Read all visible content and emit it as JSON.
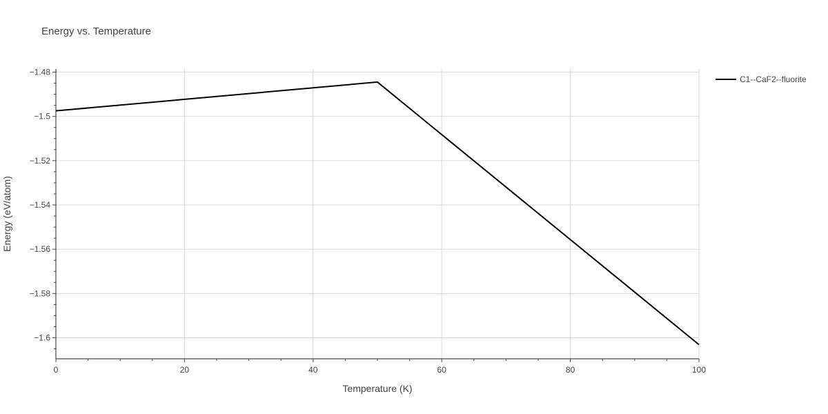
{
  "chart_data": {
    "type": "line",
    "title": "Energy vs. Temperature",
    "xlabel": "Temperature (K)",
    "ylabel": "Energy (eV/atom)",
    "xlim": [
      0,
      100
    ],
    "ylim": [
      -1.6095,
      -1.4786
    ],
    "xticks": [
      0,
      20,
      40,
      60,
      80,
      100
    ],
    "xtick_labels": [
      "0",
      "20",
      "40",
      "60",
      "80",
      "100"
    ],
    "yticks": [
      -1.48,
      -1.5,
      -1.52,
      -1.54,
      -1.56,
      -1.58,
      -1.6
    ],
    "ytick_labels": [
      "−1.48",
      "−1.5",
      "−1.52",
      "−1.54",
      "−1.56",
      "−1.58",
      "−1.6"
    ],
    "grid": true,
    "legend_position": "top-right",
    "series": [
      {
        "name": "C1--CaF2--fluorite",
        "color": "#000000",
        "x": [
          0,
          50,
          100
        ],
        "y": [
          -1.4975,
          -1.4845,
          -1.6031
        ]
      }
    ]
  }
}
